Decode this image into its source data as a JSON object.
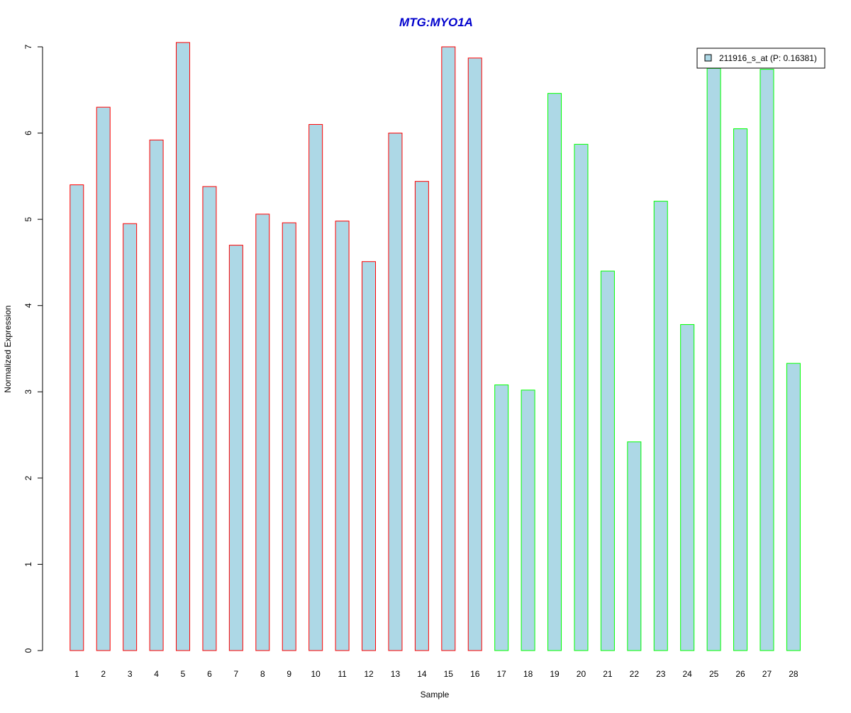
{
  "colors": {
    "bar_fill": "#add8e6",
    "group1_border": "#ff0000",
    "group2_border": "#00ff00",
    "title": "#0000cd",
    "axis": "#000000"
  },
  "chart_data": {
    "type": "bar",
    "title": "MTG:MYO1A",
    "xlabel": "Sample",
    "ylabel": "Normalized Expression",
    "ylim": [
      0,
      7
    ],
    "yticks": [
      0,
      1,
      2,
      3,
      4,
      5,
      6,
      7
    ],
    "grid": false,
    "legend_position": "top-right",
    "categories": [
      "1",
      "2",
      "3",
      "4",
      "5",
      "6",
      "7",
      "8",
      "9",
      "10",
      "11",
      "12",
      "13",
      "14",
      "15",
      "16",
      "17",
      "18",
      "19",
      "20",
      "21",
      "22",
      "23",
      "24",
      "25",
      "26",
      "27",
      "28"
    ],
    "series": [
      {
        "name": "211916_s_at (P: 0.16381)",
        "values": [
          5.4,
          6.3,
          4.95,
          5.92,
          7.05,
          5.38,
          4.7,
          5.06,
          4.96,
          6.1,
          4.98,
          4.51,
          6.0,
          5.44,
          7.0,
          6.87,
          3.08,
          3.02,
          6.46,
          5.87,
          4.4,
          2.42,
          5.21,
          3.78,
          6.75,
          6.05,
          6.74,
          3.33
        ]
      }
    ],
    "groups": [
      {
        "border_color": "#ff0000",
        "samples": [
          "1",
          "2",
          "3",
          "4",
          "5",
          "6",
          "7",
          "8",
          "9",
          "10",
          "11",
          "12",
          "13",
          "14",
          "15",
          "16"
        ]
      },
      {
        "border_color": "#00ff00",
        "samples": [
          "17",
          "18",
          "19",
          "20",
          "21",
          "22",
          "23",
          "24",
          "25",
          "26",
          "27",
          "28"
        ]
      }
    ]
  }
}
